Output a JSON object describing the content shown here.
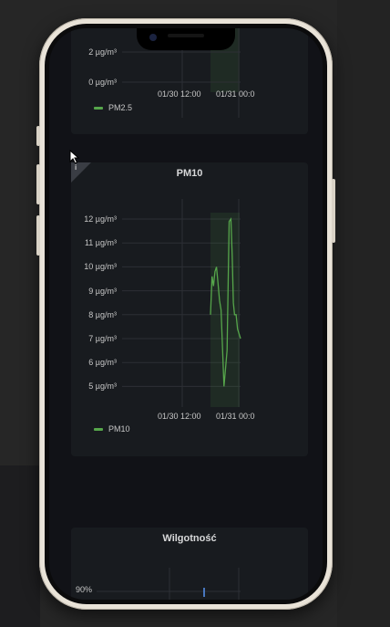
{
  "pm25_panel": {
    "yticks": [
      "2 µg/m³",
      "0 µg/m³"
    ],
    "xticks": [
      "01/30 12:00",
      "01/31 00:0"
    ],
    "legend": "PM2.5"
  },
  "pm10_panel": {
    "title": "PM10",
    "info_icon": "i",
    "yticks": [
      "12 µg/m³",
      "11 µg/m³",
      "10 µg/m³",
      "9 µg/m³",
      "8 µg/m³",
      "7 µg/m³",
      "6 µg/m³",
      "5 µg/m³"
    ],
    "xticks": [
      "01/30 12:00",
      "01/31 00:0"
    ],
    "legend": "PM10",
    "series_color": "#56a64b",
    "chart_data": {
      "type": "line",
      "ylim": [
        4.6,
        12.2
      ],
      "x": [
        0.0,
        0.05,
        0.1,
        0.15,
        0.2,
        0.25,
        0.3,
        0.35,
        0.45,
        0.55,
        0.62,
        0.68,
        0.72,
        0.76,
        0.8,
        0.85,
        0.9,
        1.0
      ],
      "values": [
        8.0,
        9.6,
        9.2,
        9.8,
        10.0,
        9.3,
        8.6,
        8.2,
        5.0,
        6.5,
        11.9,
        12.0,
        10.5,
        8.5,
        8.0,
        8.0,
        7.4,
        7.0
      ],
      "series": [
        {
          "name": "PM10"
        }
      ]
    }
  },
  "humidity_panel": {
    "title": "Wilgotność",
    "ytick_top": "90%"
  }
}
